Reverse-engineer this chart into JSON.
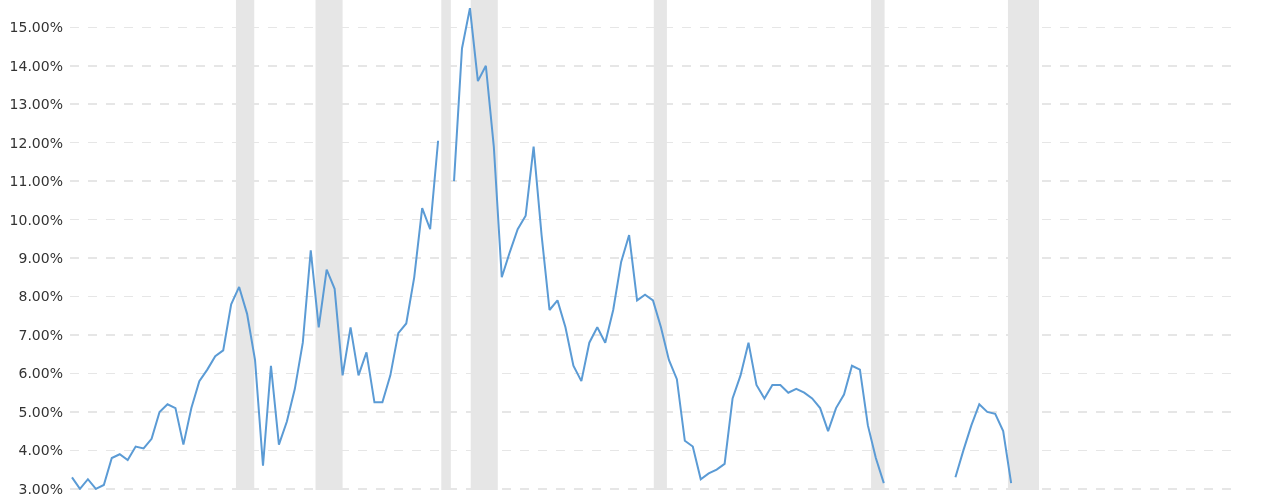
{
  "chart_data": {
    "type": "line",
    "categories": [
      null,
      null,
      null,
      null,
      null,
      null,
      null,
      null,
      null,
      null,
      null,
      null,
      null,
      null,
      null,
      null,
      null,
      null,
      null,
      null,
      null,
      null,
      null,
      null,
      null,
      null,
      null,
      null,
      null,
      null,
      null,
      null,
      null,
      null,
      null,
      null,
      null,
      null,
      null,
      null,
      null,
      null,
      null,
      null,
      null,
      null,
      null,
      null,
      null,
      null,
      null,
      null,
      null,
      null,
      null,
      null,
      null,
      null,
      null,
      null,
      null,
      null,
      null,
      null,
      null,
      null,
      null,
      null,
      null,
      null,
      null,
      null,
      null,
      null,
      null,
      null,
      null,
      null,
      null,
      null,
      null,
      null,
      null,
      null,
      null,
      null,
      null,
      null,
      null,
      null,
      null,
      null,
      null,
      null,
      null,
      null,
      null,
      null,
      null,
      null,
      null,
      null,
      null,
      null,
      null,
      null,
      null,
      null,
      null,
      null,
      null,
      null,
      null,
      null,
      null,
      null,
      null,
      null,
      null,
      null,
      null,
      null,
      null,
      null,
      null,
      null,
      null,
      null,
      null,
      null,
      null,
      null,
      null,
      null,
      null,
      null,
      null,
      null,
      null,
      null,
      null,
      null,
      null,
      null,
      null,
      null
    ],
    "series": [
      {
        "color": "#5b9bd5",
        "values": [
          3.3,
          3.0,
          3.25,
          3.0,
          3.1,
          3.8,
          3.9,
          3.75,
          4.1,
          4.05,
          4.3,
          5.0,
          5.2,
          5.1,
          4.15,
          5.1,
          5.8,
          6.1,
          6.45,
          6.6,
          7.8,
          8.25,
          7.55,
          6.35,
          3.6,
          6.2,
          4.15,
          4.75,
          5.6,
          6.8,
          9.2,
          7.2,
          8.7,
          8.2,
          5.95,
          7.2,
          5.95,
          6.55,
          5.25,
          5.25,
          5.95,
          7.05,
          7.3,
          8.5,
          10.3,
          9.75,
          12.05,
          null,
          11.0,
          14.45,
          15.5,
          13.6,
          14.0,
          11.9,
          8.5,
          9.15,
          9.75,
          10.1,
          11.9,
          9.6,
          7.65,
          7.9,
          7.2,
          6.2,
          5.8,
          6.8,
          7.2,
          6.8,
          7.65,
          8.9,
          9.6,
          7.9,
          8.05,
          7.9,
          7.2,
          6.35,
          5.85,
          4.25,
          4.1,
          3.25,
          3.4,
          3.5,
          3.65,
          5.35,
          5.95,
          6.8,
          5.7,
          5.35,
          5.7,
          5.7,
          5.5,
          5.6,
          5.5,
          5.35,
          5.1,
          4.5,
          5.1,
          5.45,
          6.2,
          6.1,
          4.65,
          3.8,
          3.15,
          null,
          null,
          null,
          null,
          null,
          null,
          null,
          null,
          3.3,
          4.0,
          4.65,
          5.2,
          5.0,
          4.95,
          4.5,
          3.15,
          null,
          null,
          null,
          null,
          null,
          null,
          null,
          null,
          null,
          null,
          null,
          null,
          null,
          null,
          null,
          null,
          null,
          null,
          null,
          null,
          null,
          null,
          null,
          null,
          null,
          null,
          null
        ]
      }
    ],
    "ylim": [
      2.97,
      15.71
    ],
    "yticks": [
      {
        "value": 3,
        "label": "3.00%"
      },
      {
        "value": 4,
        "label": "4.00%"
      },
      {
        "value": 5,
        "label": "5.00%"
      },
      {
        "value": 6,
        "label": "6.00%"
      },
      {
        "value": 7,
        "label": "7.00%"
      },
      {
        "value": 8,
        "label": "8.00%"
      },
      {
        "value": 9,
        "label": "9.00%"
      },
      {
        "value": 10,
        "label": "10.00%"
      },
      {
        "value": 11,
        "label": "11.00%"
      },
      {
        "value": 12,
        "label": "12.00%"
      },
      {
        "value": 13,
        "label": "13.00%"
      },
      {
        "value": 14,
        "label": "14.00%"
      },
      {
        "value": 15,
        "label": "15.00%"
      }
    ],
    "grid": "y",
    "tick_labels": "y",
    "marker": "none",
    "line_style": "solid"
  }
}
